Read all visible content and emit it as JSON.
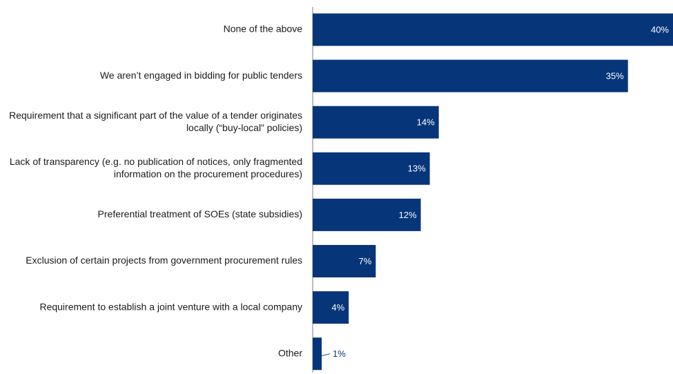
{
  "chart_data": {
    "type": "bar",
    "orientation": "horizontal",
    "title": "",
    "xlabel": "",
    "ylabel": "",
    "xlim": [
      0,
      40
    ],
    "grid": false,
    "legend": "none",
    "bar_color": "#06357A",
    "value_label_inside_color": "#ffffff",
    "value_label_outside_color": "#06357A",
    "categories": [
      [
        "None of the above"
      ],
      [
        "We aren’t engaged in bidding for public tenders"
      ],
      [
        "Requirement that a significant part of the value of a tender originates",
        "locally (“buy-local” policies)"
      ],
      [
        "Lack of transparency (e.g. no publication of notices, only fragmented",
        "information on the procurement procedures)"
      ],
      [
        "Preferential treatment of SOEs (state subsidies)"
      ],
      [
        "Exclusion of certain projects from government procurement rules"
      ],
      [
        "Requirement to establish a joint venture with a local company"
      ],
      [
        "Other"
      ]
    ],
    "values": [
      40,
      35,
      14,
      13,
      12,
      7,
      4,
      1
    ],
    "value_labels": [
      "40%",
      "35%",
      "14%",
      "13%",
      "12%",
      "7%",
      "4%",
      "1%"
    ]
  }
}
